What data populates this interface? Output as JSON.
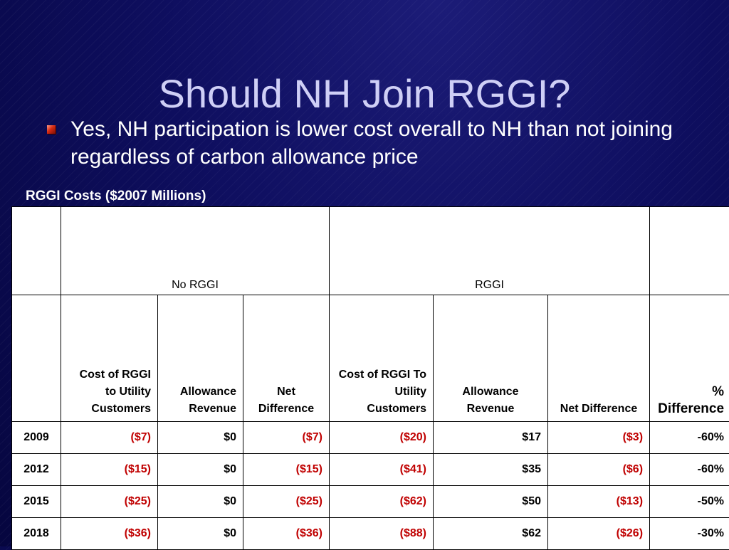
{
  "slide": {
    "title": "Should NH Join RGGI?",
    "bullet": "Yes, NH participation is lower cost overall to NH than not joining regardless of carbon allowance price",
    "table_caption": "RGGI Costs ($2007 Millions)"
  },
  "table": {
    "groups": {
      "no_rggi": "No RGGI",
      "rggi": "RGGI"
    },
    "sub_headers": {
      "cost_no_rggi": "Cost of RGGI to Utility Customers",
      "allowance_no_rggi": "Allowance Revenue",
      "net_no_rggi": "Net Difference",
      "cost_rggi": "Cost of RGGI To Utility Customers",
      "allowance_rggi": "Allowance Revenue",
      "net_rggi": "Net Difference",
      "pct": "% Difference"
    },
    "rows": [
      {
        "year": "2009",
        "c1": "($7)",
        "c2": "$0",
        "c3": "($7)",
        "c4": "($20)",
        "c5": "$17",
        "c6": "($3)",
        "c7": "-60%"
      },
      {
        "year": "2012",
        "c1": "($15)",
        "c2": "$0",
        "c3": "($15)",
        "c4": "($41)",
        "c5": "$35",
        "c6": "($6)",
        "c7": "-60%"
      },
      {
        "year": "2015",
        "c1": "($25)",
        "c2": "$0",
        "c3": "($25)",
        "c4": "($62)",
        "c5": "$50",
        "c6": "($13)",
        "c7": "-50%"
      },
      {
        "year": "2018",
        "c1": "($36)",
        "c2": "$0",
        "c3": "($36)",
        "c4": "($88)",
        "c5": "$62",
        "c6": "($26)",
        "c7": "-30%"
      }
    ]
  },
  "colors": {
    "background": "#0b0b55",
    "title": "#cfcff6",
    "negative": "#c00000",
    "bullet": "#d52a12"
  },
  "icons": {
    "bullet": "red-square-bullet-icon"
  }
}
